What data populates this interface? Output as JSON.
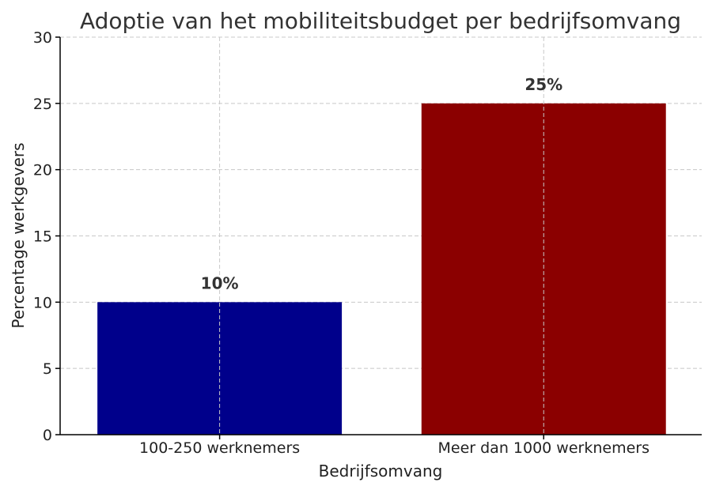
{
  "chart_data": {
    "type": "bar",
    "title": "Adoptie van het mobiliteitsbudget per bedrijfsomvang",
    "xlabel": "Bedrijfsomvang",
    "ylabel": "Percentage werkgevers",
    "categories": [
      "100-250 werknemers",
      "Meer dan 1000 werknemers"
    ],
    "values": [
      10,
      25
    ],
    "data_labels": [
      "10%",
      "25%"
    ],
    "colors": [
      "#00008b",
      "#8b0000"
    ],
    "ylim": [
      0,
      30
    ],
    "yticks": [
      0,
      5,
      10,
      15,
      20,
      25,
      30
    ],
    "grid": true,
    "legend": "none"
  }
}
